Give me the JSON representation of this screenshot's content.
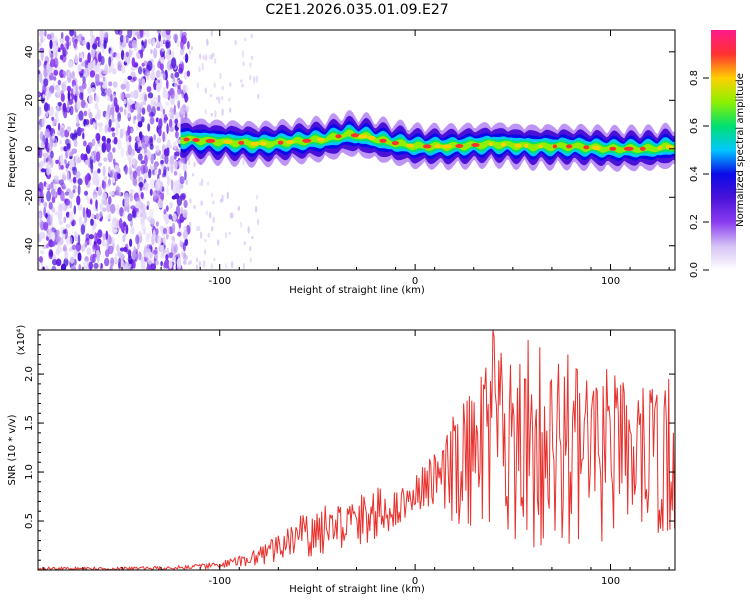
{
  "figure_title": "C2E1.2026.035.01.09.E27",
  "chart_data": [
    {
      "type": "heatmap",
      "xlabel": "Height of straight line (km)",
      "ylabel": "Frequency (Hz)",
      "xlim": [
        -193,
        133
      ],
      "ylim": [
        -50,
        49
      ],
      "x_ticks": [
        -100,
        0,
        100
      ],
      "x_tick_labels": [
        "-100",
        "0",
        "100"
      ],
      "y_ticks": [
        -40,
        -20,
        0,
        20,
        40
      ],
      "y_tick_labels": [
        "-40",
        "-20",
        "0",
        "20",
        "40"
      ],
      "signal_start_km": -120,
      "ridge_center_hz": {
        "x": [
          -120,
          -100,
          -80,
          -60,
          -45,
          -35,
          -25,
          -15,
          0,
          20,
          40,
          60,
          80,
          100,
          120,
          133
        ],
        "y": [
          4,
          3,
          2,
          3,
          4,
          6,
          5,
          3,
          1,
          1,
          2,
          1,
          1,
          0,
          0,
          1
        ]
      },
      "colorbar": {
        "label": "Normalized spectral amplitude",
        "range": [
          0,
          1
        ],
        "ticks": [
          0.0,
          0.2,
          0.4,
          0.6,
          0.8
        ],
        "tick_labels": [
          "0.0",
          "0.2",
          "0.4",
          "0.6",
          "0.8"
        ],
        "colormap": [
          "#ffffff",
          "#d5c2f5",
          "#8a3cf0",
          "#4a12d8",
          "#0a0ae8",
          "#00c8ff",
          "#00e070",
          "#8ef000",
          "#ffd000",
          "#ff3030",
          "#ff1a8c"
        ]
      }
    },
    {
      "type": "line",
      "xlabel": "Height of straight line (km)",
      "ylabel": "SNR (10 * v/v)",
      "y_multiplier": "(x10⁴)",
      "xlim": [
        -193,
        133
      ],
      "ylim": [
        0,
        2.45
      ],
      "x_ticks": [
        -100,
        0,
        100
      ],
      "x_tick_labels": [
        "-100",
        "0",
        "100"
      ],
      "y_ticks": [
        0.5,
        1.0,
        1.5,
        2.0
      ],
      "y_tick_labels": [
        "0.5",
        "1.0",
        "1.5",
        "2.0"
      ],
      "series": [
        {
          "name": "SNR",
          "color": "#e8302c",
          "envelope": {
            "x": [
              -193,
              -150,
              -125,
              -110,
              -100,
              -90,
              -80,
              -70,
              -60,
              -50,
              -40,
              -30,
              -20,
              -10,
              0,
              10,
              20,
              30,
              40,
              50,
              60,
              80,
              100,
              120,
              133
            ],
            "y_min": [
              0.0,
              0.0,
              0.0,
              0.01,
              0.02,
              0.03,
              0.05,
              0.08,
              0.12,
              0.15,
              0.2,
              0.25,
              0.3,
              0.45,
              0.6,
              0.65,
              0.45,
              0.4,
              0.3,
              0.25,
              0.2,
              0.25,
              0.3,
              0.35,
              0.35
            ],
            "y_max": [
              0.03,
              0.03,
              0.04,
              0.06,
              0.09,
              0.14,
              0.25,
              0.35,
              0.55,
              0.65,
              0.7,
              0.75,
              0.85,
              0.8,
              1.0,
              1.2,
              1.6,
              1.9,
              2.45,
              2.1,
              2.35,
              2.1,
              2.0,
              1.9,
              1.8
            ]
          },
          "notable_peaks": [
            {
              "x": 40,
              "y": 2.45
            },
            {
              "x": 58,
              "y": 2.35
            },
            {
              "x": 78,
              "y": 2.2
            },
            {
              "x": 98,
              "y": 2.05
            },
            {
              "x": 130,
              "y": 1.95
            }
          ]
        }
      ]
    }
  ]
}
